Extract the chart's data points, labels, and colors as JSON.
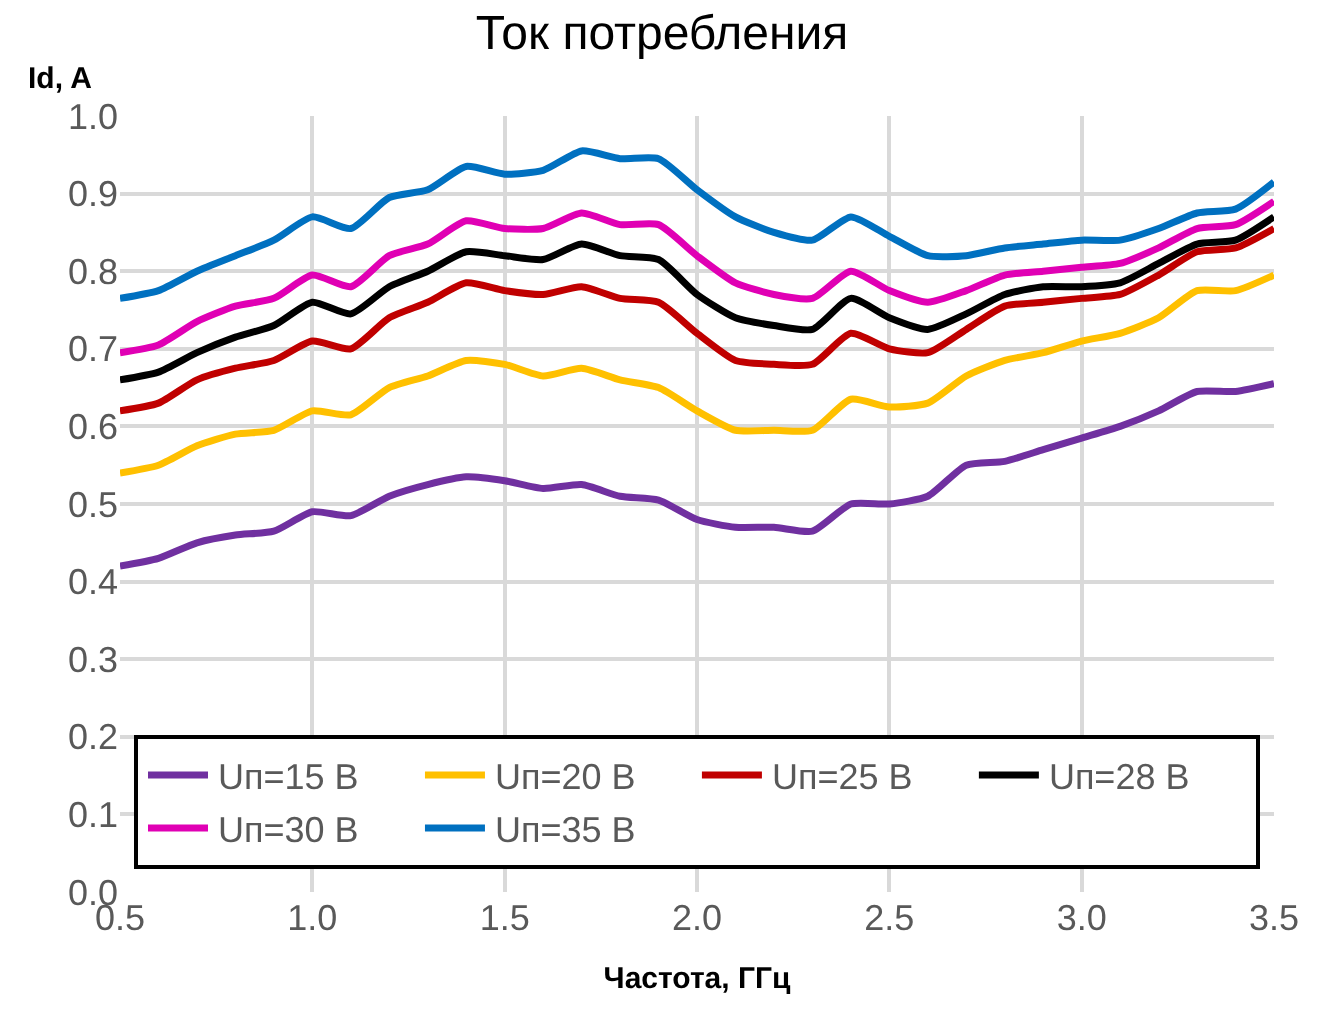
{
  "chart_data": {
    "type": "line",
    "title": "Ток потребления",
    "xlabel": "Частота, ГГц",
    "ylabel": "Id, A",
    "x": [
      0.5,
      0.6,
      0.7,
      0.8,
      0.9,
      1.0,
      1.1,
      1.2,
      1.3,
      1.4,
      1.5,
      1.6,
      1.7,
      1.8,
      1.9,
      2.0,
      2.1,
      2.2,
      2.3,
      2.4,
      2.5,
      2.6,
      2.7,
      2.8,
      2.9,
      3.0,
      3.1,
      3.2,
      3.3,
      3.4,
      3.5
    ],
    "series": [
      {
        "name": "Uп=15 В",
        "color": "#7030a0",
        "values": [
          0.42,
          0.43,
          0.45,
          0.46,
          0.465,
          0.49,
          0.485,
          0.51,
          0.525,
          0.535,
          0.53,
          0.52,
          0.525,
          0.51,
          0.505,
          0.48,
          0.47,
          0.47,
          0.465,
          0.5,
          0.5,
          0.51,
          0.55,
          0.555,
          0.57,
          0.585,
          0.6,
          0.62,
          0.645,
          0.645,
          0.655
        ]
      },
      {
        "name": "Uп=20 В",
        "color": "#ffc000",
        "values": [
          0.54,
          0.55,
          0.575,
          0.59,
          0.595,
          0.62,
          0.615,
          0.65,
          0.665,
          0.685,
          0.68,
          0.665,
          0.675,
          0.66,
          0.65,
          0.62,
          0.595,
          0.595,
          0.595,
          0.635,
          0.625,
          0.63,
          0.665,
          0.685,
          0.695,
          0.71,
          0.72,
          0.74,
          0.775,
          0.775,
          0.795
        ]
      },
      {
        "name": "Uп=25 В",
        "color": "#c00000",
        "values": [
          0.62,
          0.63,
          0.66,
          0.675,
          0.685,
          0.71,
          0.7,
          0.74,
          0.76,
          0.785,
          0.775,
          0.77,
          0.78,
          0.765,
          0.76,
          0.72,
          0.685,
          0.68,
          0.68,
          0.72,
          0.7,
          0.695,
          0.725,
          0.755,
          0.76,
          0.765,
          0.77,
          0.795,
          0.825,
          0.83,
          0.855
        ]
      },
      {
        "name": "Uп=28 В",
        "color": "#000000",
        "values": [
          0.66,
          0.67,
          0.695,
          0.715,
          0.73,
          0.76,
          0.745,
          0.78,
          0.8,
          0.825,
          0.82,
          0.815,
          0.835,
          0.82,
          0.815,
          0.77,
          0.74,
          0.73,
          0.725,
          0.765,
          0.74,
          0.725,
          0.745,
          0.77,
          0.78,
          0.78,
          0.785,
          0.81,
          0.835,
          0.84,
          0.87
        ]
      },
      {
        "name": "Uп=30 В",
        "color": "#e000b4",
        "values": [
          0.695,
          0.705,
          0.735,
          0.755,
          0.765,
          0.795,
          0.78,
          0.82,
          0.835,
          0.865,
          0.855,
          0.855,
          0.875,
          0.86,
          0.86,
          0.82,
          0.785,
          0.77,
          0.765,
          0.8,
          0.775,
          0.76,
          0.775,
          0.795,
          0.8,
          0.805,
          0.81,
          0.83,
          0.855,
          0.86,
          0.89
        ]
      },
      {
        "name": "Uп=35 В",
        "color": "#0070c0",
        "values": [
          0.765,
          0.775,
          0.8,
          0.82,
          0.84,
          0.87,
          0.855,
          0.895,
          0.905,
          0.935,
          0.925,
          0.93,
          0.955,
          0.945,
          0.945,
          0.905,
          0.87,
          0.85,
          0.84,
          0.87,
          0.845,
          0.82,
          0.82,
          0.83,
          0.835,
          0.84,
          0.84,
          0.855,
          0.875,
          0.88,
          0.915
        ]
      }
    ],
    "xlim": [
      0.5,
      3.5
    ],
    "xticks": [
      {
        "value": 0.5,
        "label": "0.5"
      },
      {
        "value": 1.0,
        "label": "1.0"
      },
      {
        "value": 1.5,
        "label": "1.5"
      },
      {
        "value": 2.0,
        "label": "2.0"
      },
      {
        "value": 2.5,
        "label": "2.5"
      },
      {
        "value": 3.0,
        "label": "3.0"
      },
      {
        "value": 3.5,
        "label": "3.5"
      }
    ],
    "ylim": [
      0,
      1.0
    ],
    "yticks": [
      {
        "value": 0,
        "label": "0.0"
      },
      {
        "value": 0.1,
        "label": "0.1"
      },
      {
        "value": 0.2,
        "label": "0.2"
      },
      {
        "value": 0.3,
        "label": "0.3"
      },
      {
        "value": 0.4,
        "label": "0.4"
      },
      {
        "value": 0.5,
        "label": "0.5"
      },
      {
        "value": 0.6,
        "label": "0.6"
      },
      {
        "value": 0.7,
        "label": "0.7"
      },
      {
        "value": 0.8,
        "label": "0.8"
      },
      {
        "value": 0.9,
        "label": "0.9"
      },
      {
        "value": 1.0,
        "label": "1.0"
      }
    ],
    "grid": true,
    "legend": "bottom",
    "marker": "none",
    "line_style": "solid"
  }
}
